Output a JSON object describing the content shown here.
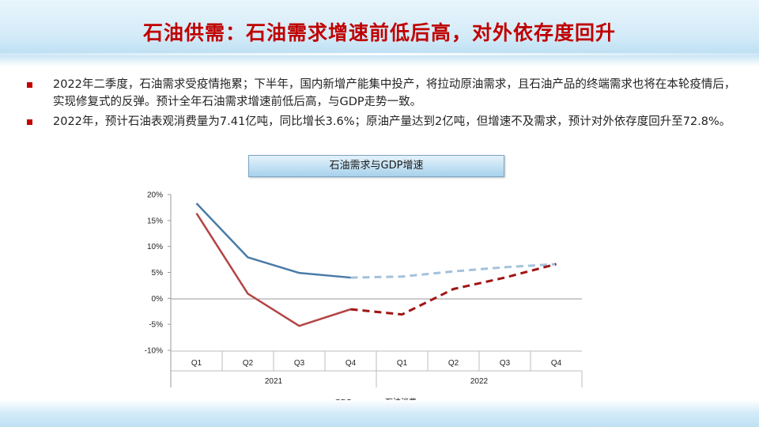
{
  "slide": {
    "title": "石油供需：石油需求增速前低后高，对外依存度回升"
  },
  "bullets": [
    "2022年二季度，石油需求受疫情拖累；下半年，国内新增产能集中投产，将拉动原油需求，且石油产品的终端需求也将在本轮疫情后，实现修复式的反弹。预计全年石油需求增速前低后高，与GDP走势一致。",
    "2022年，预计石油表观消费量为7.41亿吨，同比增长3.6%；原油产量达到2亿吨，但增速不及需求，预计对外依存度回升至72.8%。"
  ],
  "chart_data": {
    "type": "line",
    "title": "石油需求与GDP增速",
    "categories": [
      "Q1",
      "Q2",
      "Q3",
      "Q4",
      "Q1",
      "Q2",
      "Q3",
      "Q4"
    ],
    "category_groups": [
      {
        "label": "2021",
        "span": 4
      },
      {
        "label": "2022",
        "span": 4
      }
    ],
    "y_ticks": [
      "20%",
      "15%",
      "10%",
      "5%",
      "0%",
      "-5%",
      "-10%"
    ],
    "ylim": [
      -10,
      20
    ],
    "y_unit": "%",
    "series": [
      {
        "name": "GDP",
        "color": "#4a7ba7",
        "forecast_color": "#a4c2dc",
        "values": [
          18.3,
          7.9,
          4.9,
          4.0,
          4.2,
          5.2,
          6.0,
          6.6
        ],
        "forecast_from_index": 3
      },
      {
        "name": "石油消费",
        "color": "#b34545",
        "forecast_color": "#a01515",
        "values": [
          16.4,
          0.9,
          -5.3,
          -2.1,
          -3.1,
          1.8,
          4.0,
          6.6
        ],
        "forecast_from_index": 3
      }
    ],
    "legend_position": "bottom",
    "grid": false
  }
}
